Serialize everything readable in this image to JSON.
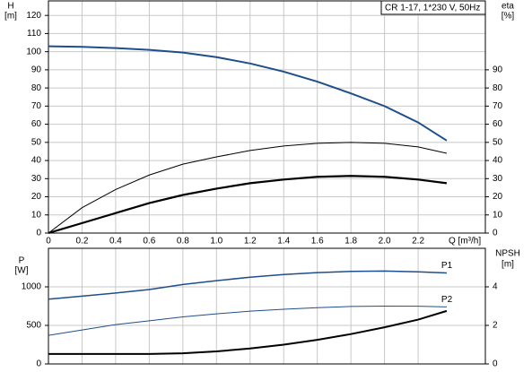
{
  "chart_data": [
    {
      "type": "line",
      "title": "CR 1-17, 1*230 V, 50Hz",
      "ylabel": "H",
      "yunit": "[m]",
      "y2label": "eta",
      "y2unit": "[%]",
      "xlabel": "Q [m³/h]",
      "x": [
        0,
        0.2,
        0.4,
        0.6,
        0.8,
        1.0,
        1.2,
        1.4,
        1.6,
        1.8,
        2.0,
        2.2,
        2.37
      ],
      "xlim": [
        0,
        2.6
      ],
      "xticks": [
        0,
        0.2,
        0.4,
        0.6,
        0.8,
        {
          "value": 1,
          "label": "1.0"
        },
        1.2,
        1.4,
        1.6,
        1.8,
        {
          "value": 2,
          "label": "2.0"
        },
        2.2
      ],
      "show_xtick_labels": true,
      "ylim": [
        0,
        128
      ],
      "yticks": [
        0,
        10,
        20,
        30,
        40,
        50,
        60,
        70,
        80,
        90,
        100,
        110,
        120
      ],
      "y2lim": [
        0,
        128
      ],
      "y2ticks": [
        0,
        10,
        20,
        30,
        40,
        50,
        60,
        70,
        80,
        90
      ],
      "grid": true,
      "series": [
        {
          "color": "#1f4e8c",
          "width": 2,
          "values": [
            103,
            102.7,
            102,
            101,
            99.5,
            97,
            93.5,
            89,
            83.5,
            77,
            70,
            61,
            51
          ]
        },
        {
          "color": "#000000",
          "width": 1,
          "axis": "y2",
          "values": [
            0,
            14,
            24,
            32,
            38,
            42,
            45.5,
            48,
            49.5,
            50,
            49.5,
            47.5,
            44
          ]
        },
        {
          "color": "#000000",
          "width": 2.2,
          "axis": "y2",
          "values": [
            0,
            5.5,
            11,
            16.5,
            21,
            24.5,
            27.5,
            29.5,
            31,
            31.5,
            31,
            29.5,
            27.5
          ]
        }
      ]
    },
    {
      "type": "line",
      "ylabel": "P",
      "yunit": "[W]",
      "y2label": "NPSH",
      "y2unit": "[m]",
      "x": [
        0,
        0.2,
        0.4,
        0.6,
        0.8,
        1.0,
        1.2,
        1.4,
        1.6,
        1.8,
        2.0,
        2.2,
        2.37
      ],
      "xlim": [
        0,
        2.6
      ],
      "xticks": [
        0,
        0.2,
        0.4,
        0.6,
        0.8,
        1,
        1.2,
        1.4,
        1.6,
        1.8,
        2,
        2.2
      ],
      "show_xtick_labels": false,
      "ylim": [
        0,
        1500
      ],
      "yticks": [
        0,
        500,
        1000
      ],
      "y2lim": [
        0,
        6
      ],
      "y2ticks": [
        0,
        2,
        4
      ],
      "grid": true,
      "series": [
        {
          "name": "P1",
          "color": "#1f4e8c",
          "width": 1.5,
          "values": [
            840,
            880,
            920,
            965,
            1030,
            1080,
            1125,
            1160,
            1185,
            1200,
            1205,
            1195,
            1180
          ]
        },
        {
          "name": "P2",
          "color": "#1f4e8c",
          "width": 1,
          "values": [
            370,
            440,
            510,
            560,
            610,
            650,
            685,
            710,
            730,
            745,
            750,
            748,
            740
          ]
        },
        {
          "color": "#000000",
          "width": 2,
          "axis": "y2",
          "values": [
            0.52,
            0.52,
            0.52,
            0.52,
            0.55,
            0.65,
            0.8,
            1.0,
            1.25,
            1.55,
            1.9,
            2.3,
            2.75
          ]
        }
      ]
    }
  ]
}
